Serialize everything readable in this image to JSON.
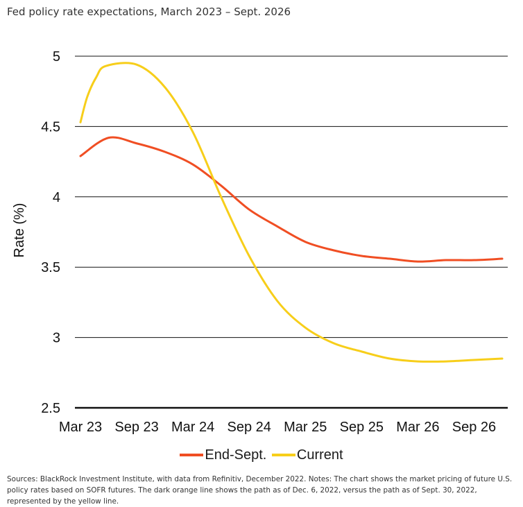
{
  "title": "Fed policy rate expectations, March 2023 – Sept. 2026",
  "sources": "Sources: BlackRock Investment Institute, with data from Refinitiv, December 2022. Notes: The chart shows the market pricing of future U.S. policy rates based on SOFR futures. The dark orange line shows the path as of Dec. 6, 2022, versus the path as of Sept. 30, 2022, represented by the yellow line.",
  "chart_data": {
    "type": "line",
    "ylabel": "Rate (%)",
    "ylim": [
      2.5,
      5
    ],
    "yticks": [
      "5",
      "4.5",
      "4",
      "3.5",
      "3",
      "2.5"
    ],
    "ytick_values": [
      5,
      4.5,
      4,
      3.5,
      3,
      2.5
    ],
    "categories": [
      "Mar 23",
      "Sep 23",
      "Mar 24",
      "Sep 24",
      "Mar 25",
      "Sep 25",
      "Mar 26",
      "Sep 26"
    ],
    "xlim": [
      0,
      7.5
    ],
    "grid": "horizontal",
    "legend_position": "bottom",
    "series": [
      {
        "name": "End-Sept.",
        "color": "#f04e23",
        "points": [
          [
            0,
            4.29
          ],
          [
            0.5,
            4.42
          ],
          [
            1,
            4.38
          ],
          [
            1.5,
            4.32
          ],
          [
            2,
            4.23
          ],
          [
            2.5,
            4.08
          ],
          [
            3,
            3.91
          ],
          [
            3.5,
            3.79
          ],
          [
            4,
            3.68
          ],
          [
            4.5,
            3.62
          ],
          [
            5,
            3.58
          ],
          [
            5.5,
            3.56
          ],
          [
            6,
            3.54
          ],
          [
            6.5,
            3.55
          ],
          [
            7,
            3.55
          ],
          [
            7.5,
            3.56
          ]
        ]
      },
      {
        "name": "Current",
        "color": "#f7ce1a",
        "points": [
          [
            0,
            4.53
          ],
          [
            0.12,
            4.71
          ],
          [
            0.28,
            4.85
          ],
          [
            0.45,
            4.93
          ],
          [
            1,
            4.94
          ],
          [
            1.5,
            4.78
          ],
          [
            2,
            4.46
          ],
          [
            2.5,
            4.0
          ],
          [
            3,
            3.58
          ],
          [
            3.5,
            3.26
          ],
          [
            4,
            3.07
          ],
          [
            4.5,
            2.96
          ],
          [
            5,
            2.9
          ],
          [
            5.5,
            2.85
          ],
          [
            6,
            2.83
          ],
          [
            6.5,
            2.83
          ],
          [
            7,
            2.84
          ],
          [
            7.5,
            2.85
          ]
        ]
      }
    ]
  }
}
